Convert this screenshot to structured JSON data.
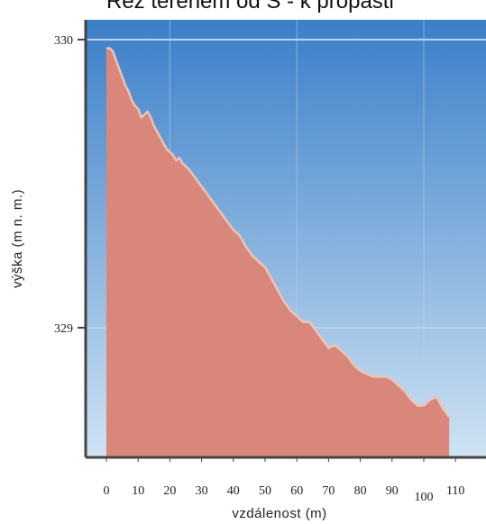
{
  "chart_data": {
    "type": "area",
    "title": "Řez terénem od S - k propasti",
    "xlabel": "vzdálenost (m)",
    "ylabel": "výška (m n. m.)",
    "x_ticks": [
      "0",
      "10",
      "20",
      "30",
      "40",
      "50",
      "60",
      "70",
      "80",
      "90",
      "100",
      "110"
    ],
    "y_ticks": [
      "330",
      "329"
    ],
    "xlim": [
      -3,
      113
    ],
    "ylim": [
      328.55,
      330.1
    ],
    "grid": true,
    "colors": {
      "fill": "#d9877a",
      "edge": "#eec3b5",
      "sky_top": "#3a7fc9",
      "sky_bottom": "#cfe3f3",
      "grid": "#b9d4ec",
      "axis": "#444444"
    },
    "series": [
      {
        "x": [
          0,
          1,
          2,
          3,
          4,
          5,
          6,
          7,
          8,
          9,
          10,
          11,
          12,
          13,
          14,
          15,
          16,
          17,
          18,
          19,
          20,
          21,
          22,
          23,
          24,
          26,
          28,
          30,
          32,
          34,
          36,
          38,
          40,
          42,
          44,
          46,
          48,
          50,
          52,
          54,
          56,
          58,
          60,
          62,
          64,
          66,
          68,
          70,
          72,
          74,
          76,
          78,
          80,
          82,
          84,
          86,
          88,
          90,
          92,
          94,
          96,
          98,
          100,
          102,
          104,
          106,
          108
        ],
        "y": [
          329.97,
          329.97,
          329.96,
          329.93,
          329.9,
          329.87,
          329.84,
          329.82,
          329.79,
          329.77,
          329.76,
          329.73,
          329.74,
          329.75,
          329.73,
          329.7,
          329.68,
          329.66,
          329.64,
          329.62,
          329.61,
          329.6,
          329.58,
          329.59,
          329.57,
          329.55,
          329.52,
          329.49,
          329.46,
          329.43,
          329.4,
          329.37,
          329.34,
          329.32,
          329.28,
          329.25,
          329.23,
          329.21,
          329.17,
          329.13,
          329.09,
          329.06,
          329.04,
          329.02,
          329.02,
          328.99,
          328.96,
          328.93,
          328.94,
          328.92,
          328.9,
          328.87,
          328.85,
          328.84,
          328.83,
          328.83,
          328.83,
          328.82,
          328.8,
          328.78,
          328.75,
          328.73,
          328.73,
          328.75,
          328.76,
          328.72,
          328.69
        ]
      }
    ]
  }
}
